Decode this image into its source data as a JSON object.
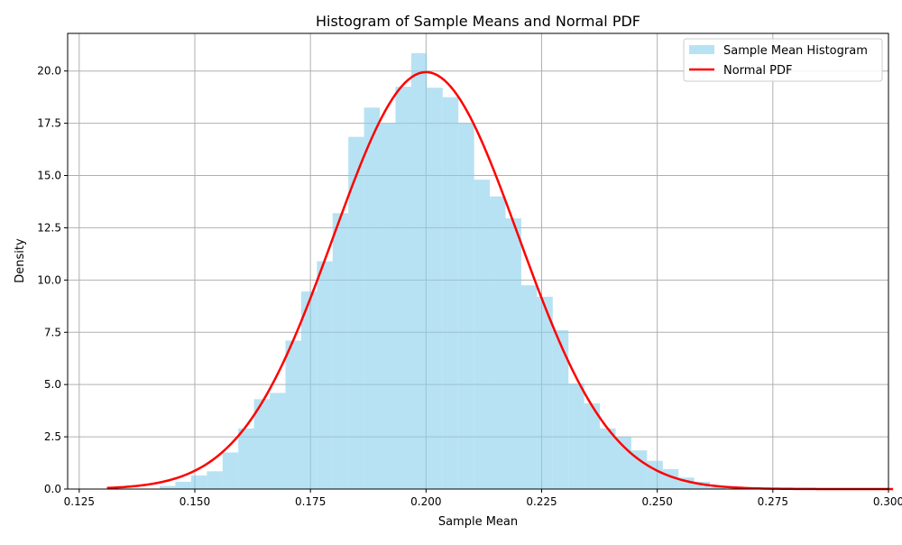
{
  "colors": {
    "bar": "#87CEEB",
    "pdf_line": "#FF0000",
    "grid": "#b0b0b0",
    "axis": "#000000"
  },
  "chart_data": {
    "type": "bar",
    "title": "Histogram of Sample Means and Normal PDF",
    "xlabel": "Sample Mean",
    "ylabel": "Density",
    "xlim": [
      0.1225,
      0.3
    ],
    "ylim": [
      0,
      21.8
    ],
    "grid": true,
    "legend": "top-right",
    "x_ticks": [
      "0.125",
      "0.150",
      "0.175",
      "0.200",
      "0.225",
      "0.250",
      "0.275",
      "0.300"
    ],
    "y_ticks": [
      "0.0",
      "2.5",
      "5.0",
      "7.5",
      "10.0",
      "12.5",
      "15.0",
      "17.5",
      "20.0"
    ],
    "x_tick_values": [
      0.125,
      0.15,
      0.175,
      0.2,
      0.225,
      0.25,
      0.275,
      0.3
    ],
    "y_tick_values": [
      0,
      2.5,
      5.0,
      7.5,
      10.0,
      12.5,
      15.0,
      17.5,
      20.0
    ],
    "series": [
      {
        "name": "Sample Mean Histogram",
        "kind": "histogram",
        "bin_edges": [
          0.1424,
          0.1458,
          0.1492,
          0.1526,
          0.156,
          0.1594,
          0.1628,
          0.1662,
          0.1696,
          0.173,
          0.1764,
          0.1798,
          0.1832,
          0.1866,
          0.19,
          0.1934,
          0.1968,
          0.2002,
          0.2036,
          0.207,
          0.2104,
          0.2138,
          0.2172,
          0.2206,
          0.224,
          0.2274,
          0.2308,
          0.2342,
          0.2376,
          0.241,
          0.2444,
          0.2478,
          0.2512,
          0.2546,
          0.258,
          0.2614,
          0.2648
        ],
        "values": [
          0.15,
          0.35,
          0.65,
          0.85,
          1.75,
          2.9,
          4.3,
          4.6,
          7.1,
          9.45,
          10.9,
          13.2,
          16.85,
          18.25,
          17.5,
          19.25,
          20.85,
          19.2,
          18.75,
          17.5,
          14.8,
          14.0,
          12.95,
          9.75,
          9.2,
          7.6,
          5.05,
          4.1,
          2.9,
          2.5,
          1.85,
          1.35,
          0.95,
          0.55,
          0.35,
          0.1
        ]
      },
      {
        "name": "Normal PDF",
        "kind": "line",
        "mean": 0.2,
        "std": 0.02,
        "x_range": [
          0.131,
          0.301
        ]
      }
    ]
  }
}
